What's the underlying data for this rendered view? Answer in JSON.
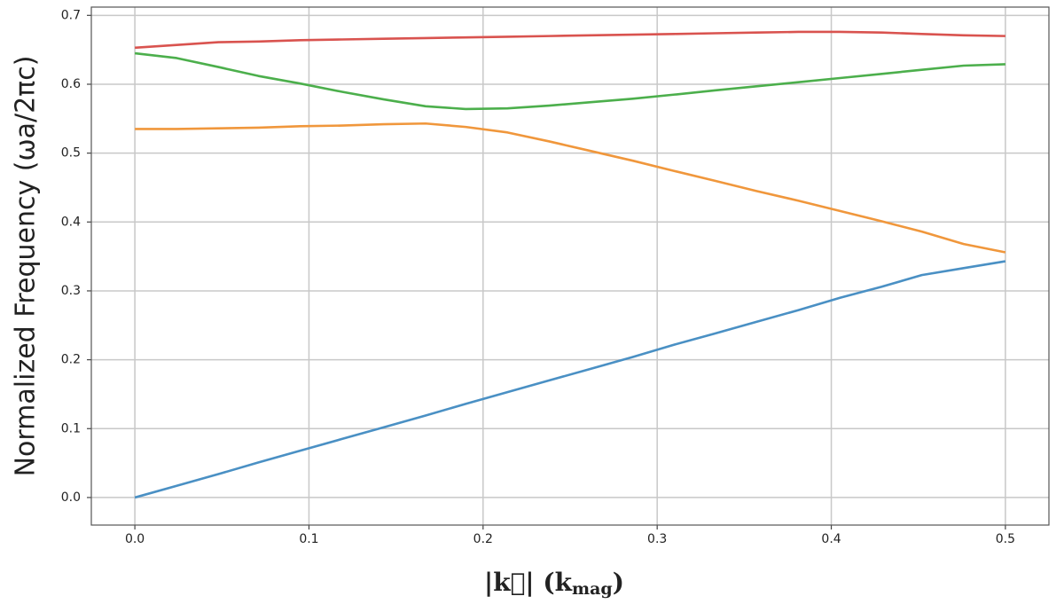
{
  "chart_data": {
    "type": "line",
    "y_label": "Normalized Frequency (ωa/2πc)",
    "x_label": {
      "main": "|k⃗| (k",
      "sub": "mag",
      "close": ")"
    },
    "x": [
      0,
      0.024,
      0.048,
      0.071,
      0.095,
      0.119,
      0.143,
      0.167,
      0.19,
      0.214,
      0.238,
      0.262,
      0.286,
      0.31,
      0.333,
      0.357,
      0.381,
      0.405,
      0.429,
      0.452,
      0.476,
      0.5
    ],
    "series": [
      {
        "color": "#4a90c4",
        "values": [
          0,
          0.017,
          0.034,
          0.051,
          0.068,
          0.085,
          0.102,
          0.119,
          0.136,
          0.153,
          0.17,
          0.187,
          0.204,
          0.222,
          0.238,
          0.255,
          0.272,
          0.29,
          0.306,
          0.323,
          0.333,
          0.343
        ]
      },
      {
        "color": "#f0973c",
        "values": [
          0.535,
          0.535,
          0.536,
          0.537,
          0.539,
          0.54,
          0.542,
          0.543,
          0.538,
          0.53,
          0.517,
          0.503,
          0.489,
          0.474,
          0.46,
          0.445,
          0.431,
          0.416,
          0.401,
          0.386,
          0.368,
          0.356
        ]
      },
      {
        "color": "#4caf4c",
        "values": [
          0.645,
          0.638,
          0.625,
          0.612,
          0.601,
          0.589,
          0.578,
          0.568,
          0.564,
          0.565,
          0.569,
          0.574,
          0.579,
          0.585,
          0.591,
          0.597,
          0.603,
          0.609,
          0.615,
          0.621,
          0.627,
          0.629
        ]
      },
      {
        "color": "#d9534f",
        "values": [
          0.653,
          0.657,
          0.661,
          0.662,
          0.664,
          0.665,
          0.666,
          0.667,
          0.668,
          0.669,
          0.67,
          0.671,
          0.672,
          0.673,
          0.674,
          0.675,
          0.676,
          0.676,
          0.675,
          0.673,
          0.671,
          0.67
        ]
      }
    ],
    "xlim": [
      -0.025,
      0.525
    ],
    "ylim": [
      -0.04,
      0.712
    ],
    "xticks": [
      {
        "value": 0,
        "label": "0.0"
      },
      0.1,
      0.2,
      0.3,
      0.4,
      0.5
    ],
    "yticks": [
      {
        "value": 0,
        "label": "0.0"
      },
      0.1,
      0.2,
      0.3,
      0.4,
      0.5,
      0.6,
      0.7
    ],
    "grid": true
  }
}
